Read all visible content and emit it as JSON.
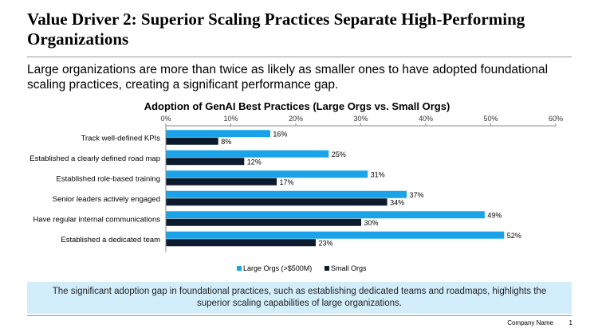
{
  "slide": {
    "title": "Value Driver 2: Superior Scaling Practices Separate High-Performing Organizations",
    "subtitle": "Large organizations are more than twice as likely as smaller ones to have adopted foundational scaling practices, creating a significant performance gap.",
    "callout": "The significant adoption gap in foundational practices, such as establishing dedicated teams and roadmaps, highlights the superior scaling capabilities of large organizations.",
    "footer_company": "Company Name",
    "footer_page": "1"
  },
  "chart_data": {
    "type": "bar",
    "orientation": "horizontal",
    "title": "Adoption of GenAI Best Practices (Large Orgs vs. Small Orgs)",
    "categories": [
      "Track well-defined KPIs",
      "Established a clearly defined road map",
      "Established role-based training",
      "Senior leaders actively engaged",
      "Have regular internal communications",
      "Established a dedicated team"
    ],
    "series": [
      {
        "name": "Large Orgs (>$500M)",
        "color": "#1aa3e8",
        "values": [
          16,
          25,
          31,
          37,
          49,
          52
        ]
      },
      {
        "name": "Small Orgs",
        "color": "#0d1b2e",
        "values": [
          8,
          12,
          17,
          34,
          30,
          23
        ]
      }
    ],
    "xlim": [
      0,
      60
    ],
    "xticks": [
      0,
      10,
      20,
      30,
      40,
      50,
      60
    ],
    "tick_suffix": "%",
    "value_suffix": "%",
    "axis_position": "top",
    "legend_position": "bottom"
  }
}
